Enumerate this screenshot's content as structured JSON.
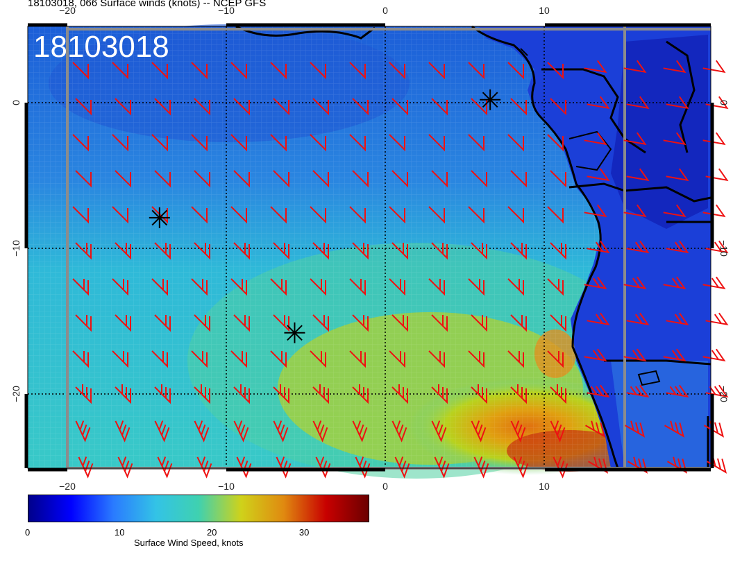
{
  "title": "18103018, 066 Surface winds (knots) -- NCEP GFS",
  "stamp": "18103018",
  "colors": {
    "barb": "#ee1111",
    "coast": "#000000",
    "colorbar_stops": [
      "#00008b",
      "#0000ff",
      "#2a7bff",
      "#33c3e6",
      "#3fd1b0",
      "#cfd21a",
      "#e08a10",
      "#c80000",
      "#6b0000"
    ]
  },
  "map": {
    "lon_ticks": [
      {
        "value": -20,
        "label": "−20"
      },
      {
        "value": -10,
        "label": "−10"
      },
      {
        "value": 0,
        "label": "0"
      },
      {
        "value": 10,
        "label": "10"
      }
    ],
    "lat_ticks": [
      {
        "value": 0,
        "label": "0"
      },
      {
        "value": -10,
        "label": "−10"
      },
      {
        "value": -20,
        "label": "−20"
      }
    ],
    "markers": [
      {
        "name": "marker-north",
        "lon": 6.6,
        "lat": 0.2
      },
      {
        "name": "marker-west",
        "lon": -14.2,
        "lat": -7.9
      },
      {
        "name": "marker-central",
        "lon": -5.7,
        "lat": -15.8
      }
    ]
  },
  "colorbar": {
    "min": 0,
    "max": 37,
    "ticks": [
      {
        "value": 0,
        "label": "0"
      },
      {
        "value": 10,
        "label": "10"
      },
      {
        "value": 20,
        "label": "20"
      },
      {
        "value": 30,
        "label": "30"
      }
    ],
    "label": "Surface Wind Speed, knots"
  }
}
